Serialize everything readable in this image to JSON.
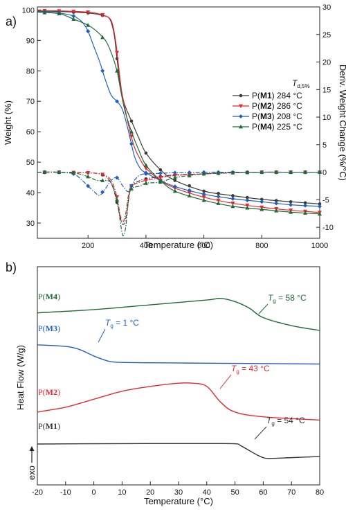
{
  "panel_a": {
    "label": "a)",
    "xlabel": "Temperature (°C)",
    "ylabel_left": "Weight (%)",
    "ylabel_right": "Deriv. Weight Change (%/°C)",
    "legend_title": {
      "main": "T",
      "sub": "d,5%"
    },
    "legend": [
      {
        "key": "M1",
        "pre": "P(",
        "bold": "M1",
        "post": ") 284 °C",
        "color": "#3a3a3a",
        "marker": "circle"
      },
      {
        "key": "M2",
        "pre": "P(",
        "bold": "M2",
        "post": ") 286 °C",
        "color": "#e8282d",
        "marker": "tri-down"
      },
      {
        "key": "M3",
        "pre": "P(",
        "bold": "M3",
        "post": ") 208 °C",
        "color": "#1f5fc4",
        "marker": "diamond"
      },
      {
        "key": "M4",
        "pre": "P(",
        "bold": "M4",
        "post": ") 225 °C",
        "color": "#1e6b34",
        "marker": "tri-up"
      }
    ],
    "xticks": [
      "200",
      "400",
      "600",
      "800",
      "1000"
    ],
    "yticks_left": [
      "30",
      "40",
      "50",
      "60",
      "70",
      "80",
      "90",
      "100"
    ],
    "yticks_right": [
      "-10",
      "-5",
      "0",
      "5",
      "10",
      "15",
      "20",
      "25",
      "30"
    ]
  },
  "panel_b": {
    "label": "b)",
    "xlabel": "Temperature (°C)",
    "ylabel": "Heat Flow (W/g)",
    "exo_label": "exo",
    "xticks": [
      "-20",
      "-10",
      "0",
      "10",
      "20",
      "30",
      "40",
      "50",
      "60",
      "70",
      "80"
    ],
    "curve_labels": [
      {
        "key": "M4",
        "pre": "P(",
        "bold": "M4",
        "post": ")",
        "color": "#1e6b34"
      },
      {
        "key": "M3",
        "pre": "P(",
        "bold": "M3",
        "post": ")",
        "color": "#1f5fc4"
      },
      {
        "key": "M2",
        "pre": "P(",
        "bold": "M2",
        "post": ")",
        "color": "#e8282d"
      },
      {
        "key": "M1",
        "pre": "P(",
        "bold": "M1",
        "post": ")",
        "color": "#333333"
      }
    ],
    "tg_labels": [
      {
        "key": "M4",
        "text": " = 58 °C",
        "color": "#1e6b34"
      },
      {
        "key": "M3",
        "text": " = 1 °C",
        "color": "#1f5fc4"
      },
      {
        "key": "M2",
        "text": " = 43 °C",
        "color": "#e8282d"
      },
      {
        "key": "M1",
        "text": " = 54 °C",
        "color": "#333333"
      }
    ]
  },
  "chart_data": [
    {
      "type": "line",
      "title": "",
      "xlabel": "Temperature (°C)",
      "ylabel": "Weight (%)",
      "y2label": "Deriv. Weight Change (%/°C)",
      "xlim": [
        25,
        1000
      ],
      "ylim": [
        25,
        101
      ],
      "y2lim": [
        -12,
        30
      ],
      "legend_position": "right-middle",
      "series": [
        {
          "name": "P(M1) 284 °C",
          "axis": "left",
          "x": [
            25,
            100,
            200,
            250,
            275,
            290,
            300,
            310,
            320,
            330,
            350,
            375,
            400,
            450,
            500,
            600,
            700,
            800,
            900,
            1000
          ],
          "y": [
            99.6,
            99.5,
            99.0,
            98.2,
            97.0,
            92.0,
            84.0,
            76.0,
            71.0,
            68.0,
            63.5,
            58.0,
            53.0,
            47.5,
            44.0,
            40.5,
            39.0,
            37.8,
            37.0,
            36.3
          ]
        },
        {
          "name": "P(M2) 286 °C",
          "axis": "left",
          "x": [
            25,
            100,
            200,
            250,
            280,
            295,
            305,
            315,
            325,
            340,
            360,
            380,
            400,
            450,
            500,
            600,
            700,
            800,
            900,
            1000
          ],
          "y": [
            99.8,
            99.7,
            99.3,
            98.4,
            96.5,
            90.0,
            82.0,
            74.0,
            69.0,
            62.0,
            55.0,
            51.0,
            48.0,
            44.0,
            41.5,
            38.5,
            36.5,
            35.2,
            34.2,
            33.5
          ]
        },
        {
          "name": "P(M3) 208 °C",
          "axis": "left",
          "x": [
            25,
            100,
            150,
            180,
            200,
            220,
            240,
            260,
            280,
            300,
            320,
            340,
            360,
            380,
            400,
            450,
            500,
            600,
            700,
            800,
            900,
            1000
          ],
          "y": [
            99.5,
            99.0,
            98.0,
            96.0,
            93.0,
            88.0,
            83.0,
            77.0,
            72.0,
            70.0,
            67.0,
            60.0,
            52.0,
            48.0,
            46.5,
            44.0,
            42.0,
            39.5,
            38.0,
            37.0,
            36.0,
            35.5
          ]
        },
        {
          "name": "P(M4) 225 °C",
          "axis": "left",
          "x": [
            25,
            100,
            150,
            200,
            230,
            260,
            280,
            300,
            310,
            320,
            330,
            350,
            375,
            400,
            450,
            500,
            600,
            700,
            800,
            900,
            1000
          ],
          "y": [
            99.3,
            98.8,
            97.0,
            95.0,
            93.0,
            90.0,
            86.0,
            80.0,
            75.0,
            70.0,
            66.0,
            60.0,
            54.0,
            49.0,
            44.0,
            40.5,
            37.5,
            35.5,
            34.5,
            33.6,
            33.0
          ]
        },
        {
          "name": "P(M1) derivative",
          "axis": "right",
          "x": [
            25,
            100,
            200,
            250,
            280,
            300,
            310,
            320,
            330,
            340,
            350,
            380,
            400,
            450,
            500,
            600,
            700,
            800,
            900,
            1000
          ],
          "y": [
            0,
            0,
            -0.1,
            -0.5,
            -2.0,
            -5.5,
            -8.0,
            -9.5,
            -8.5,
            -5.0,
            -2.5,
            -1.5,
            -1.2,
            -0.8,
            -0.5,
            -0.3,
            -0.1,
            0,
            0,
            0
          ]
        },
        {
          "name": "P(M2) derivative",
          "axis": "right",
          "x": [
            25,
            100,
            200,
            250,
            280,
            300,
            310,
            320,
            330,
            340,
            350,
            380,
            400,
            450,
            500,
            600,
            700,
            800,
            900,
            1000
          ],
          "y": [
            0,
            0,
            -0.1,
            -0.4,
            -1.5,
            -4.5,
            -7.5,
            -9.0,
            -7.5,
            -4.0,
            -2.5,
            -1.8,
            -1.5,
            -1.0,
            -0.6,
            -0.3,
            -0.1,
            0,
            0,
            0
          ]
        },
        {
          "name": "P(M3) derivative",
          "axis": "right",
          "x": [
            25,
            100,
            150,
            180,
            200,
            220,
            240,
            260,
            280,
            300,
            320,
            340,
            360,
            380,
            400,
            450,
            500,
            600,
            700,
            800,
            900,
            1000
          ],
          "y": [
            0,
            0,
            -0.3,
            -1.5,
            -2.5,
            -3.5,
            -4.2,
            -3.0,
            -1.5,
            -1.0,
            -2.5,
            -3.5,
            -1.5,
            -0.5,
            -0.3,
            -0.2,
            -0.1,
            0,
            0,
            0,
            0,
            0
          ]
        },
        {
          "name": "P(M4) derivative",
          "axis": "right",
          "x": [
            25,
            100,
            150,
            200,
            230,
            260,
            280,
            300,
            310,
            320,
            330,
            340,
            350,
            380,
            400,
            450,
            500,
            600,
            700,
            800,
            900,
            1000
          ],
          "y": [
            0,
            0,
            -0.1,
            -0.8,
            -1.5,
            -1.5,
            -2.0,
            -5.0,
            -8.5,
            -11.5,
            -10.0,
            -5.0,
            -3.0,
            -2.5,
            -2.0,
            -1.8,
            -1.0,
            -0.3,
            -0.1,
            0,
            0,
            0
          ]
        }
      ]
    },
    {
      "type": "line",
      "title": "",
      "xlabel": "Temperature (°C)",
      "ylabel": "Heat Flow (W/g)",
      "xlim": [
        -20,
        80
      ],
      "y_ticks_shown": false,
      "annotations": [
        "exo ↑"
      ],
      "series": [
        {
          "name": "P(M4)",
          "tg": 58,
          "x": [
            -20,
            0,
            20,
            40,
            45,
            50,
            55,
            60,
            70,
            80
          ],
          "y": [
            82,
            84,
            87,
            90,
            91,
            89,
            85,
            79,
            74,
            71
          ]
        },
        {
          "name": "P(M3)",
          "tg": 1,
          "x": [
            -20,
            -10,
            -5,
            0,
            3,
            6,
            10,
            20,
            40,
            60,
            80
          ],
          "y": [
            62,
            61,
            59,
            55,
            53,
            51.5,
            51,
            50.8,
            50.5,
            50.3,
            50
          ]
        },
        {
          "name": "P(M2)",
          "tg": 43,
          "x": [
            -20,
            -10,
            0,
            10,
            20,
            30,
            35,
            40,
            45,
            50,
            60,
            80
          ],
          "y": [
            20,
            23,
            28,
            33,
            36,
            38,
            38,
            36,
            26,
            20,
            17,
            15
          ]
        },
        {
          "name": "P(M1)",
          "tg": 54,
          "x": [
            -20,
            0,
            20,
            40,
            50,
            52,
            55,
            58,
            60,
            62,
            70,
            80
          ],
          "y": [
            0,
            0.2,
            0.3,
            0.3,
            0.2,
            -1,
            -4,
            -7,
            -8.5,
            -9,
            -8.5,
            -7.8
          ]
        }
      ]
    }
  ]
}
